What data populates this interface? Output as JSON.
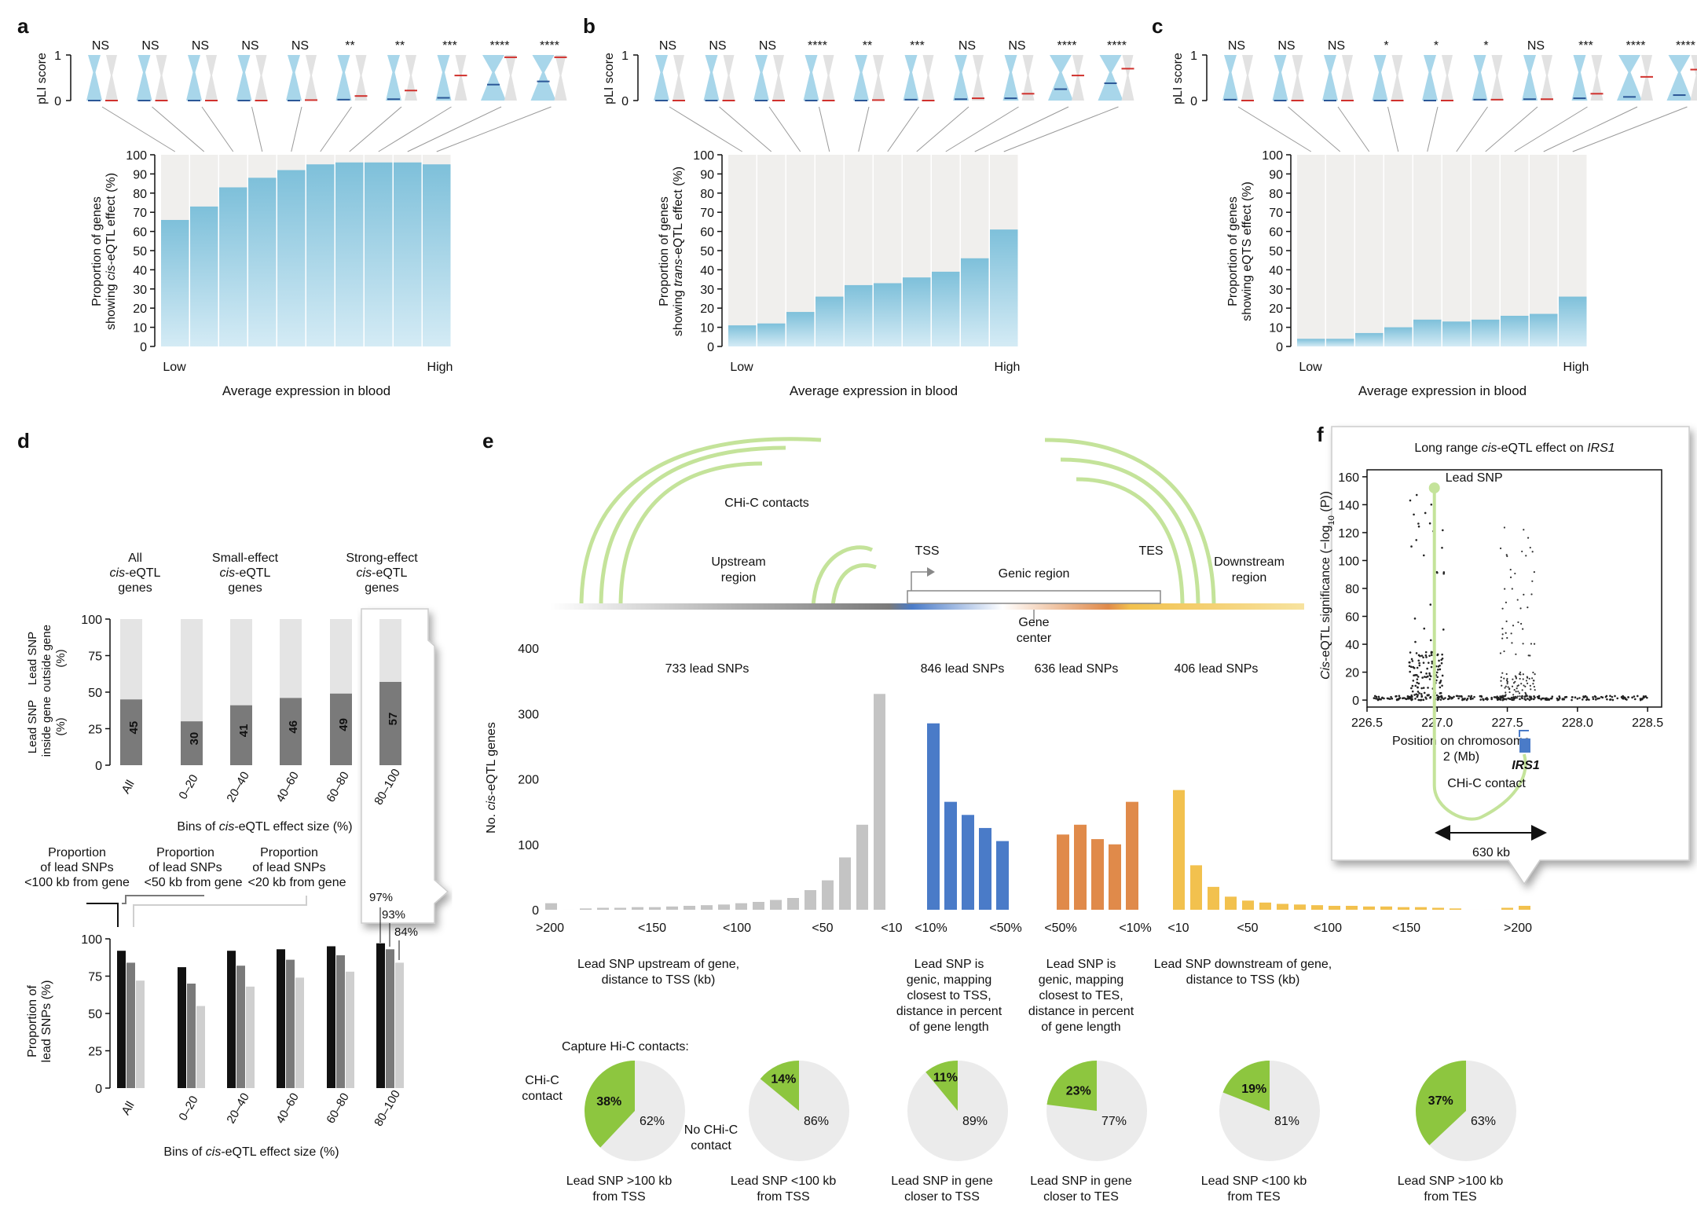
{
  "colors": {
    "blue_bar": "#7ec0da",
    "blue_bar_light": "#d4ebf5",
    "bg_bar": "#f0efed",
    "violin_blue": "#a8d6ea",
    "violin_grey": "#e2e2e2",
    "red_median": "#d0312d",
    "navy_median": "#2b5797",
    "dark_grey": "#7a7a7a",
    "light_grey": "#e4e4e4",
    "green": "#8dc63f",
    "green_light": "#c4e39a",
    "genic_blue": "#4a7bc8",
    "genic_orange": "#e08a4a",
    "downstream_yellow": "#f2c14e",
    "upstream_grey": "#c4c4c4"
  },
  "panels": {
    "a": {
      "letter": "a"
    },
    "b": {
      "letter": "b"
    },
    "c": {
      "letter": "c"
    },
    "d": {
      "letter": "d"
    },
    "e": {
      "letter": "e"
    },
    "f": {
      "letter": "f"
    }
  },
  "chart_data": [
    {
      "id": "a",
      "type": "bar",
      "violin_ylabel": "pLI score",
      "violin_ticks": [
        "0",
        "1"
      ],
      "significance": [
        "NS",
        "NS",
        "NS",
        "NS",
        "NS",
        "**",
        "**",
        "***",
        "****",
        "****"
      ],
      "values": [
        66,
        73,
        83,
        88,
        92,
        95,
        96,
        96,
        96,
        95
      ],
      "ylim": [
        0,
        100
      ],
      "yticks": [
        "0",
        "10",
        "20",
        "30",
        "40",
        "50",
        "60",
        "70",
        "80",
        "90",
        "100"
      ],
      "ylabel_1": "Proportion of genes",
      "ylabel_2_pre": "showing ",
      "ylabel_2_it": "cis",
      "ylabel_2_post": "-eQTL effect (%)",
      "x_low": "Low",
      "x_high": "High",
      "xlabel": "Average expression in blood"
    },
    {
      "id": "b",
      "type": "bar",
      "violin_ylabel": "pLI score",
      "violin_ticks": [
        "0",
        "1"
      ],
      "significance": [
        "NS",
        "NS",
        "NS",
        "****",
        "**",
        "***",
        "NS",
        "NS",
        "****",
        "****"
      ],
      "values": [
        11,
        12,
        18,
        26,
        32,
        33,
        36,
        39,
        46,
        61
      ],
      "ylim": [
        0,
        100
      ],
      "yticks": [
        "0",
        "10",
        "20",
        "30",
        "40",
        "50",
        "60",
        "70",
        "80",
        "90",
        "100"
      ],
      "ylabel_1": "Proportion of genes",
      "ylabel_2_pre": "showing ",
      "ylabel_2_it": "trans",
      "ylabel_2_post": "-eQTL effect (%)",
      "x_low": "Low",
      "x_high": "High",
      "xlabel": "Average expression in blood"
    },
    {
      "id": "c",
      "type": "bar",
      "violin_ylabel": "pLI score",
      "violin_ticks": [
        "0",
        "1"
      ],
      "significance": [
        "NS",
        "NS",
        "NS",
        "*",
        "*",
        "*",
        "NS",
        "***",
        "****",
        "****"
      ],
      "values": [
        4,
        4,
        7,
        10,
        14,
        13,
        14,
        16,
        17,
        26
      ],
      "ylim": [
        0,
        100
      ],
      "yticks": [
        "0",
        "10",
        "20",
        "30",
        "40",
        "50",
        "60",
        "70",
        "80",
        "90",
        "100"
      ],
      "ylabel_1": "Proportion of genes",
      "ylabel_2_pre": "showing eQTS effect (%)",
      "ylabel_2_it": "",
      "ylabel_2_post": "",
      "x_low": "Low",
      "x_high": "High",
      "xlabel": "Average expression in blood"
    },
    {
      "id": "d_top",
      "type": "bar",
      "groups": [
        {
          "l1": "All",
          "l2": "cis",
          "l2b": "-eQTL",
          "l3": "genes"
        },
        {
          "l1": "Small-effect",
          "l2": "cis",
          "l2b": "-eQTL",
          "l3": "genes"
        },
        {
          "l1": "Strong-effect",
          "l2": "cis",
          "l2b": "-eQTL",
          "l3": "genes"
        }
      ],
      "categories": [
        "All",
        "0–20",
        "20–40",
        "40–60",
        "60–80",
        "80–100"
      ],
      "values": [
        45,
        30,
        41,
        46,
        49,
        57
      ],
      "value_labels": [
        "45",
        "30",
        "41",
        "46",
        "49",
        "57"
      ],
      "ylim": [
        0,
        100
      ],
      "yticks": [
        "0",
        "25",
        "50",
        "75",
        "100"
      ],
      "ylabel_outside_1": "Lead SNP",
      "ylabel_outside_2": "outside gene",
      "ylabel_outside_3": "(%)",
      "ylabel_inside_1": "Lead SNP",
      "ylabel_inside_2": "inside gene",
      "ylabel_inside_3": "(%)",
      "xlabel_pre": "Bins of ",
      "xlabel_it": "cis",
      "xlabel_post": "-eQTL effect size (%)"
    },
    {
      "id": "d_bottom",
      "type": "bar",
      "legend": [
        {
          "l1": "Proportion",
          "l2": "of lead SNPs",
          "l3": "<100 kb from gene"
        },
        {
          "l1": "Proportion",
          "l2": "of lead SNPs",
          "l3": "<50 kb from gene"
        },
        {
          "l1": "Proportion",
          "l2": "of lead SNPs",
          "l3": "<20 kb from gene"
        }
      ],
      "categories": [
        "All",
        "0–20",
        "20–40",
        "40–60",
        "60–80",
        "80–100"
      ],
      "series": [
        {
          "values": [
            92,
            81,
            92,
            93,
            95,
            97
          ]
        },
        {
          "values": [
            84,
            70,
            82,
            86,
            89,
            93
          ]
        },
        {
          "values": [
            72,
            55,
            68,
            74,
            78,
            84
          ]
        }
      ],
      "callouts": [
        "97%",
        "93%",
        "84%"
      ],
      "ylim": [
        0,
        100
      ],
      "yticks": [
        "0",
        "25",
        "50",
        "75",
        "100"
      ],
      "ylabel_1": "Proportion of",
      "ylabel_2": "lead SNPs (%)",
      "xlabel_pre": "Bins of ",
      "xlabel_it": "cis",
      "xlabel_post": "-eQTL effect size (%)"
    },
    {
      "id": "e",
      "type": "bar",
      "ylim": [
        0,
        400
      ],
      "yticks": [
        "0",
        "100",
        "200",
        "300",
        "400"
      ],
      "ylabel_pre": "No. ",
      "ylabel_it": "cis",
      "ylabel_post": "-eQTL genes",
      "upstream": [
        10,
        0,
        2,
        3,
        3,
        4,
        4,
        5,
        6,
        7,
        8,
        10,
        12,
        15,
        18,
        30,
        45,
        80,
        130,
        330
      ],
      "genic_tss": [
        285,
        165,
        145,
        125,
        105
      ],
      "genic_tes": [
        115,
        130,
        108,
        100,
        165
      ],
      "downstream": [
        183,
        68,
        35,
        20,
        14,
        11,
        9,
        8,
        7,
        6,
        6,
        5,
        5,
        4,
        4,
        3,
        2,
        0,
        0,
        3,
        6
      ],
      "x_ticks_up": [
        ">200",
        "<150",
        "<100",
        "<50",
        "<10"
      ],
      "x_ticks_tss": [
        "<10%",
        "<50%"
      ],
      "x_ticks_tes": [
        "<50%",
        "<10%"
      ],
      "x_ticks_down": [
        "<10",
        "<50",
        "<100",
        "<150",
        ">200"
      ],
      "counts": [
        "733 lead SNPs",
        "846 lead SNPs",
        "636 lead SNPs",
        "406 lead SNPs"
      ],
      "region_labels": {
        "upstream_1": "Upstream",
        "upstream_2": "region",
        "tss": "TSS",
        "genic": "Genic region",
        "tes": "TES",
        "downstream_1": "Downstream",
        "downstream_2": "region",
        "center_1": "Gene",
        "center_2": "center",
        "chic": "CHi-C contacts"
      },
      "group_labels": [
        [
          "Lead SNP upstream of gene,",
          "distance to TSS (kb)"
        ],
        [
          "Lead SNP is",
          "genic, mapping",
          "closest to TSS,",
          "distance in percent",
          "of gene length"
        ],
        [
          "Lead SNP is",
          "genic, mapping",
          "closest to TES,",
          "distance in percent",
          "of gene length"
        ],
        [
          "Lead SNP downstream of gene,",
          "distance to TSS (kb)"
        ]
      ],
      "pie_title": "Capture Hi-C contacts:",
      "pie_legend_1": "CHi-C",
      "pie_legend_2": "contact",
      "pie_nolegend_1": "No CHi-C",
      "pie_nolegend_2": "contact",
      "pies": [
        {
          "contact": 38,
          "contact_label": "38%",
          "no_label": "62%",
          "l1": "Lead SNP >100 kb",
          "l2": "from TSS"
        },
        {
          "contact": 14,
          "contact_label": "14%",
          "no_label": "86%",
          "l1": "Lead SNP <100 kb",
          "l2": "from TSS"
        },
        {
          "contact": 11,
          "contact_label": "11%",
          "no_label": "89%",
          "l1": "Lead SNP in gene",
          "l2": "closer to TSS"
        },
        {
          "contact": 23,
          "contact_label": "23%",
          "no_label": "77%",
          "l1": "Lead SNP in gene",
          "l2": "closer to TES"
        },
        {
          "contact": 19,
          "contact_label": "19%",
          "no_label": "81%",
          "l1": "Lead SNP <100 kb",
          "l2": "from TES"
        },
        {
          "contact": 37,
          "contact_label": "37%",
          "no_label": "63%",
          "l1": "Lead SNP >100 kb",
          "l2": "from TES"
        }
      ]
    },
    {
      "id": "f",
      "type": "scatter",
      "title_pre": "Long range ",
      "title_it": "cis",
      "title_mid": "-eQTL effect on ",
      "title_it2": "IRS1",
      "xlim": [
        226.5,
        228.6
      ],
      "ylim": [
        -5,
        165
      ],
      "xticks": [
        "226.5",
        "227.0",
        "227.5",
        "228.0",
        "228.5"
      ],
      "yticks": [
        "0",
        "20",
        "40",
        "60",
        "80",
        "100",
        "120",
        "140",
        "160"
      ],
      "ylabel_it": "Cis",
      "ylabel_post": "-eQTL significance (−log",
      "ylabel_sub": "10",
      "ylabel_end": " (P))",
      "xlabel_1": "Position on chromosome",
      "xlabel_2": "2 (Mb)",
      "lead_snp": "Lead SNP",
      "lead_x": 226.98,
      "lead_y": 152,
      "gene": "IRS1",
      "gene_x": 227.62,
      "contact": "CHi-C contact",
      "distance": "630 kb"
    }
  ]
}
